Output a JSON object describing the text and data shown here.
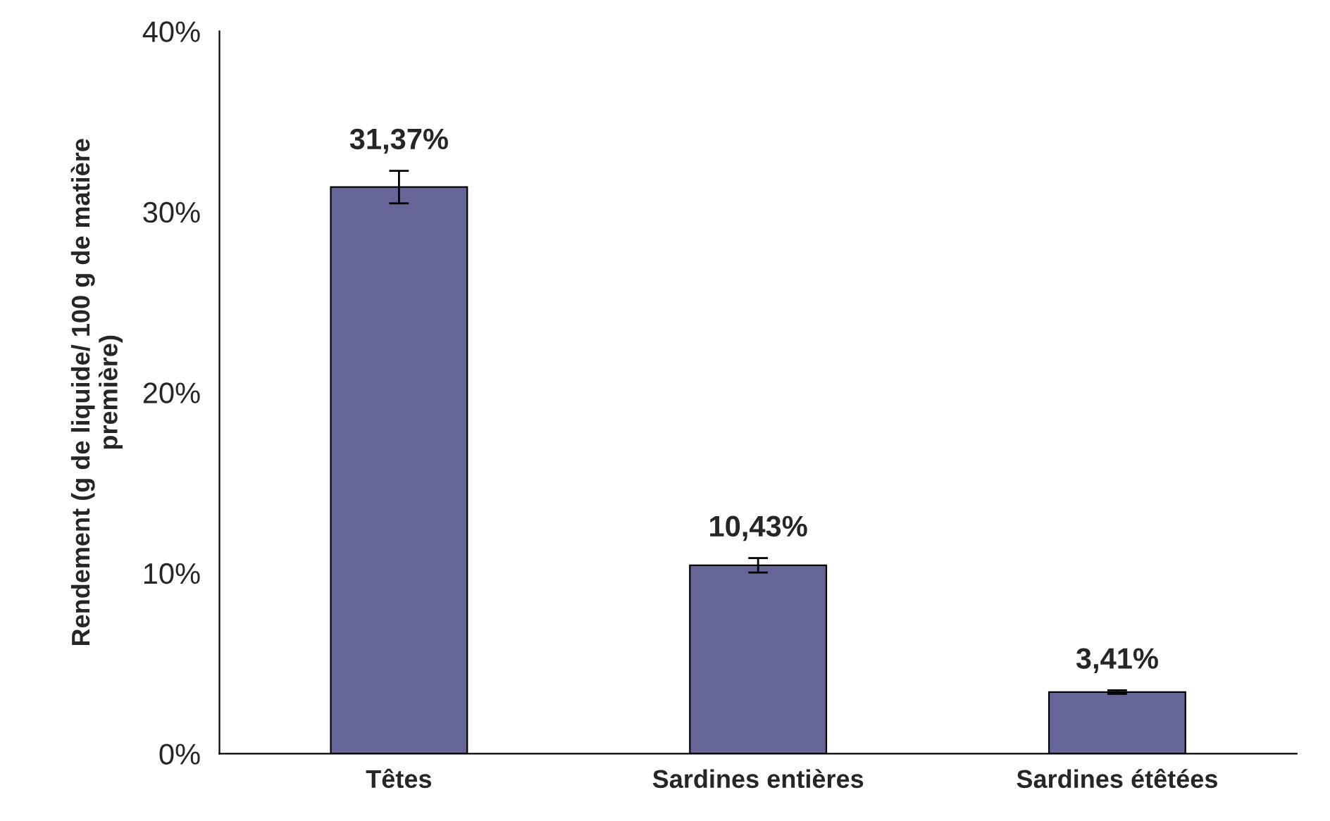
{
  "chart_data": {
    "type": "bar",
    "ylabel": "Rendement (g de liquide/ 100 g de matière\npremière)",
    "categories": [
      "Têtes",
      "Sardines entières",
      "Sardines étêtées"
    ],
    "values": [
      31.37,
      10.43,
      3.41
    ],
    "errors": [
      0.9,
      0.4,
      0.1
    ],
    "value_labels": [
      "31,37%",
      "10,43%",
      "3,41%"
    ],
    "color": "#666699",
    "ylim": [
      0,
      40
    ],
    "yticks": [
      {
        "value": 0,
        "label": "0%"
      },
      {
        "value": 10,
        "label": "10%"
      },
      {
        "value": 20,
        "label": "20%"
      },
      {
        "value": 30,
        "label": "30%"
      },
      {
        "value": 40,
        "label": "40%"
      }
    ],
    "grid": false,
    "legend": false
  }
}
